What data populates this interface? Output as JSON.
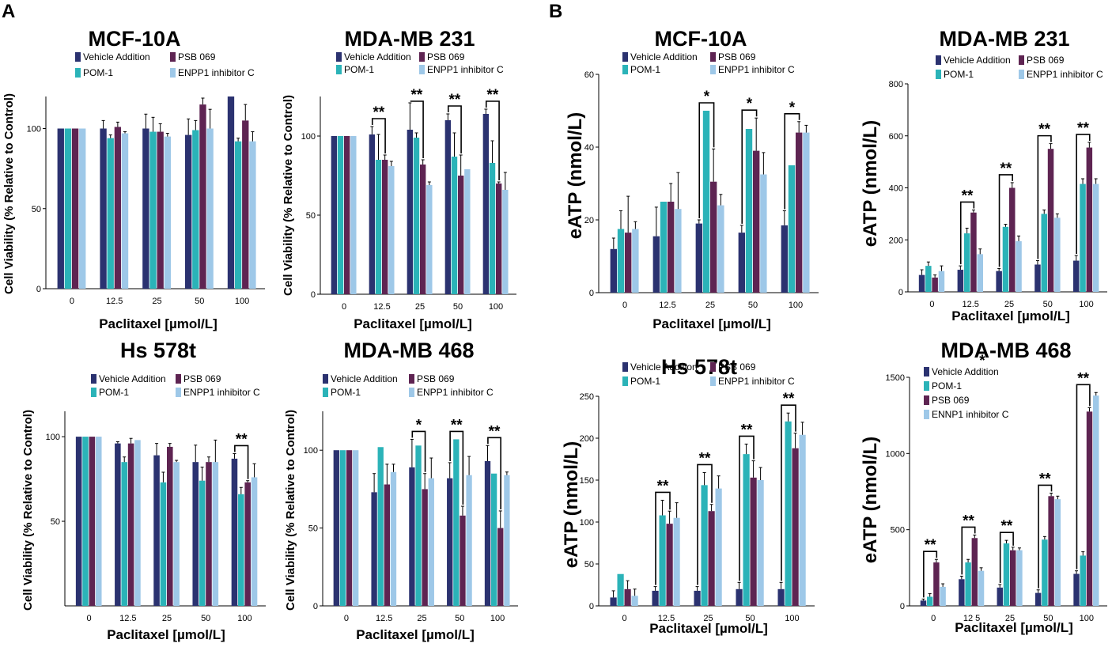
{
  "panel_labels": [
    "A",
    "B"
  ],
  "colors": {
    "vehicle": "#2b3270",
    "pom1": "#2bb3b8",
    "psb069": "#5e2452",
    "enpp1": "#9ec8e8"
  },
  "chart_data": [
    {
      "type": "bar",
      "title": "MCF-10A",
      "xlabel": "Paclitaxel [µmol/L]",
      "ylabel": "Cell Viability (% Relative to Control)",
      "ylim": [
        0,
        120
      ],
      "yticks": [
        0,
        50,
        100
      ],
      "categories": [
        "0",
        "12.5",
        "25",
        "50",
        "100"
      ],
      "legend": [
        "Vehicle Addition",
        "PSB 069",
        "POM-1",
        "ENPP1 inhibitor C"
      ],
      "series": [
        {
          "name": "Vehicle Addition",
          "values": [
            100,
            100,
            100,
            96,
            120
          ],
          "errors": [
            0,
            5,
            9,
            10,
            0
          ]
        },
        {
          "name": "POM-1",
          "values": [
            100,
            94,
            98,
            99,
            92
          ],
          "errors": [
            0,
            2,
            9,
            6,
            2
          ]
        },
        {
          "name": "PSB 069",
          "values": [
            100,
            101,
            98,
            115,
            105
          ],
          "errors": [
            0,
            3,
            5,
            4,
            10
          ]
        },
        {
          "name": "ENPP1 inhibitor C",
          "values": [
            100,
            97,
            95,
            100,
            92
          ],
          "errors": [
            0,
            1,
            2,
            12,
            6
          ]
        }
      ],
      "significance": []
    },
    {
      "type": "bar",
      "title": "MDA-MB 231",
      "xlabel": "Paclitaxel [µmol/L]",
      "ylabel": "Cell Viability (% Relative to Control)",
      "ylim": [
        0,
        125
      ],
      "yticks": [
        0,
        50,
        100
      ],
      "categories": [
        "0",
        "12.5",
        "25",
        "50",
        "100"
      ],
      "legend": [
        "Vehicle Addition",
        "PSB 069",
        "POM-1",
        "ENPP1 inhibitor C"
      ],
      "series": [
        {
          "name": "Vehicle Addition",
          "values": [
            100,
            101,
            104,
            110,
            114
          ],
          "errors": [
            0,
            5,
            17,
            4,
            3
          ]
        },
        {
          "name": "POM-1",
          "values": [
            100,
            85,
            99,
            87,
            83
          ],
          "errors": [
            0,
            16,
            3,
            15,
            14
          ]
        },
        {
          "name": "PSB 069",
          "values": [
            100,
            85,
            82,
            75,
            70
          ],
          "errors": [
            0,
            3,
            3,
            13,
            1
          ]
        },
        {
          "name": "ENPP1 inhibitor C",
          "values": [
            100,
            81,
            69,
            79,
            66
          ],
          "errors": [
            0,
            3,
            2,
            0,
            11
          ]
        }
      ],
      "significance": [
        {
          "category": "12.5",
          "label": "**"
        },
        {
          "category": "25",
          "label": "**"
        },
        {
          "category": "50",
          "label": "**"
        },
        {
          "category": "100",
          "label": "**"
        }
      ]
    },
    {
      "type": "bar",
      "title": "Hs 578t",
      "xlabel": "Paclitaxel [µmol/L]",
      "ylabel": "Cell Viability (% Relative to Control)",
      "ylim": [
        0,
        115
      ],
      "yticks": [
        50,
        100
      ],
      "categories": [
        "0",
        "12.5",
        "25",
        "50",
        "100"
      ],
      "legend": [
        "Vehicle Addition",
        "PSB 069",
        "POM-1",
        "ENPP1 inhibitor C"
      ],
      "series": [
        {
          "name": "Vehicle Addition",
          "values": [
            100,
            96,
            89,
            85,
            87
          ],
          "errors": [
            0,
            1,
            7,
            10,
            3
          ]
        },
        {
          "name": "POM-1",
          "values": [
            100,
            85,
            73,
            74,
            66
          ],
          "errors": [
            0,
            3,
            6,
            8,
            4
          ]
        },
        {
          "name": "PSB 069",
          "values": [
            100,
            96,
            94,
            85,
            73
          ],
          "errors": [
            0,
            3,
            2,
            3,
            1
          ]
        },
        {
          "name": "ENPP1 inhibitor C",
          "values": [
            100,
            98,
            85,
            85,
            76
          ],
          "errors": [
            0,
            0,
            1,
            13,
            8
          ]
        }
      ],
      "significance": [
        {
          "category": "100",
          "label": "**"
        }
      ]
    },
    {
      "type": "bar",
      "title": "MDA-MB 468",
      "xlabel": "Paclitaxel [µmol/L]",
      "ylabel": "Cell Viability (% Relative to Control)",
      "ylim": [
        0,
        125
      ],
      "yticks": [
        0,
        50,
        100
      ],
      "categories": [
        "0",
        "12.5",
        "25",
        "50",
        "100"
      ],
      "legend": [
        "Vehicle Addition",
        "PSB 069",
        "POM-1",
        "ENPP1 inhibitor C"
      ],
      "series": [
        {
          "name": "Vehicle Addition",
          "values": [
            100,
            73,
            89,
            82,
            93
          ],
          "errors": [
            0,
            12,
            18,
            10,
            10
          ]
        },
        {
          "name": "POM-1",
          "values": [
            100,
            102,
            103,
            107,
            85
          ],
          "errors": [
            0,
            0,
            0,
            0,
            0
          ]
        },
        {
          "name": "PSB 069",
          "values": [
            100,
            78,
            75,
            58,
            50
          ],
          "errors": [
            0,
            13,
            10,
            6,
            11
          ]
        },
        {
          "name": "ENPP1 inhibitor C",
          "values": [
            100,
            86,
            82,
            84,
            84
          ],
          "errors": [
            0,
            5,
            13,
            12,
            2
          ]
        }
      ],
      "significance": [
        {
          "category": "25",
          "label": "*"
        },
        {
          "category": "50",
          "label": "**"
        },
        {
          "category": "100",
          "label": "**"
        }
      ]
    },
    {
      "type": "bar",
      "title": "MCF-10A",
      "xlabel": "Paclitaxel [µmol/L]",
      "ylabel": "eATP (nmol/L)",
      "ylim": [
        0,
        60
      ],
      "yticks": [
        0,
        20,
        40,
        60
      ],
      "categories": [
        "0",
        "12.5",
        "25",
        "50",
        "100"
      ],
      "legend": [
        "Vehicle Addition",
        "PSB 069",
        "POM-1",
        "ENPP1 inhibitor C"
      ],
      "series": [
        {
          "name": "Vehicle Addition",
          "values": [
            12,
            15.5,
            19,
            16.5,
            18.5
          ],
          "errors": [
            3,
            8,
            1,
            2,
            4
          ]
        },
        {
          "name": "POM-1",
          "values": [
            17.5,
            25,
            50,
            45,
            35
          ],
          "errors": [
            5,
            0,
            0,
            0,
            0
          ]
        },
        {
          "name": "PSB 069",
          "values": [
            16.5,
            25,
            30.5,
            39,
            44
          ],
          "errors": [
            10,
            5,
            9,
            9,
            3
          ]
        },
        {
          "name": "ENPP1 inhibitor C",
          "values": [
            17.5,
            23,
            24,
            32.5,
            44
          ],
          "errors": [
            2,
            10,
            3,
            6,
            2
          ]
        }
      ],
      "significance": [
        {
          "category": "25",
          "label": "*"
        },
        {
          "category": "50",
          "label": "*"
        },
        {
          "category": "100",
          "label": "*"
        }
      ]
    },
    {
      "type": "bar",
      "title": "MDA-MB 231",
      "xlabel": "Paclitaxel [µmol/L]",
      "ylabel": "eATP (nmol/L)",
      "ylim": [
        0,
        800
      ],
      "yticks": [
        0,
        200,
        400,
        600,
        800
      ],
      "categories": [
        "0",
        "12.5",
        "25",
        "50",
        "100"
      ],
      "legend": [
        "Vehicle Addition",
        "PSB 069",
        "POM-1",
        "ENPP1 inhibitor C"
      ],
      "series": [
        {
          "name": "Vehicle Addition",
          "values": [
            65,
            85,
            80,
            105,
            120
          ],
          "errors": [
            20,
            15,
            10,
            15,
            20
          ]
        },
        {
          "name": "POM-1",
          "values": [
            100,
            225,
            250,
            300,
            415
          ],
          "errors": [
            15,
            20,
            10,
            15,
            20
          ]
        },
        {
          "name": "PSB 069",
          "values": [
            55,
            305,
            400,
            550,
            555
          ],
          "errors": [
            10,
            10,
            20,
            20,
            20
          ]
        },
        {
          "name": "ENPP1 inhibitor C",
          "values": [
            80,
            145,
            195,
            285,
            415
          ],
          "errors": [
            20,
            20,
            20,
            15,
            20
          ]
        }
      ],
      "significance": [
        {
          "category": "12.5",
          "label": "**"
        },
        {
          "category": "25",
          "label": "**"
        },
        {
          "category": "50",
          "label": "**"
        },
        {
          "category": "100",
          "label": "**"
        }
      ]
    },
    {
      "type": "bar",
      "title": "Hs 578t",
      "xlabel": "Paclitaxel [µmol/L]",
      "ylabel": "eATP (nmol/L)",
      "ylim": [
        0,
        250
      ],
      "yticks": [
        0,
        50,
        100,
        150,
        200,
        250
      ],
      "categories": [
        "0",
        "12.5",
        "25",
        "50",
        "100"
      ],
      "legend": [
        "Vehicle Addition",
        "PSB 069",
        "POM-1",
        "ENPP1 inhibitor C"
      ],
      "series": [
        {
          "name": "Vehicle Addition",
          "values": [
            10,
            18,
            18,
            20,
            20
          ],
          "errors": [
            8,
            5,
            5,
            8,
            8
          ]
        },
        {
          "name": "POM-1",
          "values": [
            38,
            108,
            144,
            181,
            220
          ],
          "errors": [
            0,
            18,
            15,
            12,
            10
          ]
        },
        {
          "name": "PSB 069",
          "values": [
            20,
            98,
            113,
            153,
            188
          ],
          "errors": [
            10,
            15,
            8,
            20,
            18
          ]
        },
        {
          "name": "ENPP1 inhibitor C",
          "values": [
            12,
            105,
            140,
            150,
            204
          ],
          "errors": [
            8,
            18,
            15,
            15,
            15
          ]
        }
      ],
      "significance": [
        {
          "category": "12.5",
          "label": "**"
        },
        {
          "category": "25",
          "label": "**"
        },
        {
          "category": "50",
          "label": "**"
        },
        {
          "category": "100",
          "label": "**"
        }
      ]
    },
    {
      "type": "bar",
      "title": "MDA-MB 468",
      "xlabel": "Paclitaxel [µmol/L]",
      "ylabel": "eATP (nmol/L)",
      "ylim": [
        0,
        1500
      ],
      "yticks": [
        0,
        500,
        1000,
        1500
      ],
      "categories": [
        "0",
        "12 5",
        "25",
        "50",
        "100"
      ],
      "legend": [
        "Vehicle Addition",
        "POM-1",
        "PSB 069",
        "ENNP1 inhibitor C"
      ],
      "series": [
        {
          "name": "Vehicle Addition",
          "values": [
            35,
            175,
            120,
            85,
            210
          ],
          "errors": [
            10,
            20,
            20,
            20,
            20
          ]
        },
        {
          "name": "POM-1",
          "values": [
            60,
            285,
            410,
            435,
            330
          ],
          "errors": [
            20,
            20,
            20,
            20,
            25
          ]
        },
        {
          "name": "PSB 069",
          "values": [
            285,
            445,
            365,
            720,
            1275
          ],
          "errors": [
            20,
            20,
            20,
            20,
            25
          ]
        },
        {
          "name": "ENNP1 inhibitor C",
          "values": [
            125,
            230,
            365,
            700,
            1380
          ],
          "errors": [
            20,
            20,
            15,
            20,
            20
          ]
        }
      ],
      "significance": [
        {
          "category": "0",
          "label": "**"
        },
        {
          "category": "12 5",
          "label": "**"
        },
        {
          "category": "25",
          "label": "**"
        },
        {
          "category": "50",
          "label": "**"
        },
        {
          "category": "100",
          "label": "**"
        }
      ],
      "stray_marks": [
        "*"
      ]
    }
  ]
}
